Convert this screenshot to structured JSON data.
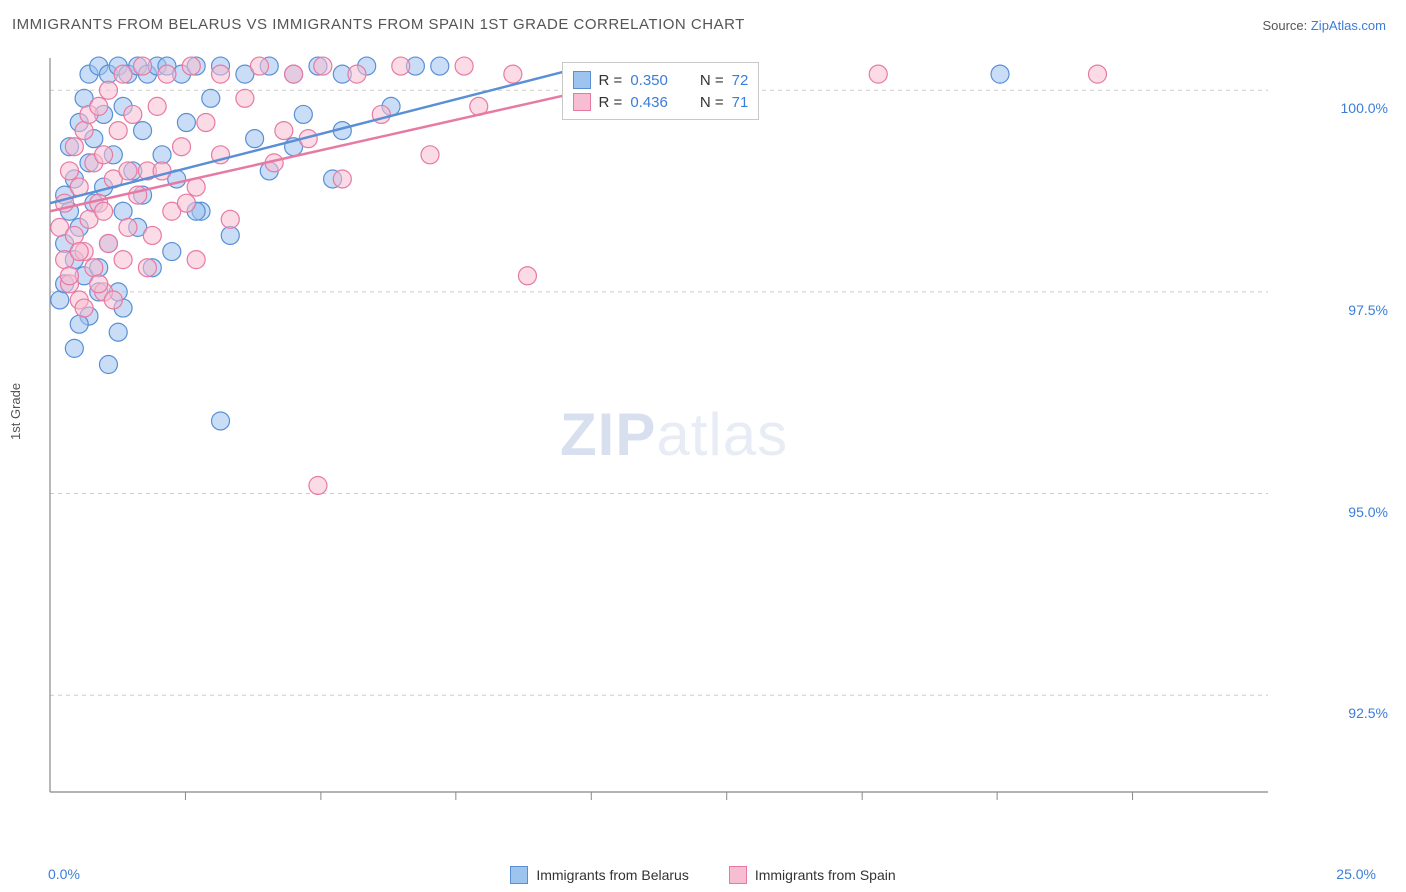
{
  "title": "IMMIGRANTS FROM BELARUS VS IMMIGRANTS FROM SPAIN 1ST GRADE CORRELATION CHART",
  "source_label": "Source: ",
  "source_name": "ZipAtlas.com",
  "ylabel": "1st Grade",
  "watermark_bold": "ZIP",
  "watermark_rest": "atlas",
  "chart": {
    "type": "scatter",
    "xlim": [
      0,
      25
    ],
    "ylim": [
      91.3,
      100.4
    ],
    "xtick_start_label": "0.0%",
    "xtick_end_label": "25.0%",
    "xtick_minor_positions": [
      2.78,
      5.56,
      8.33,
      11.11,
      13.89,
      16.67,
      19.44,
      22.22
    ],
    "ytick_labels": [
      "100.0%",
      "97.5%",
      "95.0%",
      "92.5%"
    ],
    "ytick_values": [
      100.0,
      97.5,
      95.0,
      92.5
    ],
    "grid_color": "#cccccc",
    "axis_color": "#888888",
    "background_color": "#ffffff",
    "marker_radius": 9,
    "marker_opacity": 0.55,
    "line_width": 2.5,
    "series": [
      {
        "name": "Immigrants from Belarus",
        "fill": "#9dc3ef",
        "stroke": "#5a8fd6",
        "r_label": "R = ",
        "r_value": "0.350",
        "n_label": "N = ",
        "n_value": "72",
        "regression": {
          "x1": 0.0,
          "y1": 98.6,
          "x2": 11.0,
          "y2": 100.3
        },
        "points": [
          [
            0.2,
            97.4
          ],
          [
            0.3,
            98.1
          ],
          [
            0.3,
            98.7
          ],
          [
            0.4,
            99.3
          ],
          [
            0.4,
            98.5
          ],
          [
            0.5,
            97.9
          ],
          [
            0.5,
            98.9
          ],
          [
            0.6,
            99.6
          ],
          [
            0.6,
            98.3
          ],
          [
            0.7,
            97.7
          ],
          [
            0.7,
            99.9
          ],
          [
            0.8,
            99.1
          ],
          [
            0.8,
            100.2
          ],
          [
            0.9,
            98.6
          ],
          [
            0.9,
            99.4
          ],
          [
            1.0,
            100.3
          ],
          [
            1.0,
            97.5
          ],
          [
            1.1,
            98.8
          ],
          [
            1.1,
            99.7
          ],
          [
            1.2,
            100.2
          ],
          [
            1.2,
            98.1
          ],
          [
            1.3,
            99.2
          ],
          [
            1.4,
            100.3
          ],
          [
            1.4,
            97.0
          ],
          [
            1.5,
            98.5
          ],
          [
            1.5,
            99.8
          ],
          [
            1.6,
            100.2
          ],
          [
            1.7,
            99.0
          ],
          [
            1.8,
            100.3
          ],
          [
            1.9,
            98.7
          ],
          [
            1.9,
            99.5
          ],
          [
            2.0,
            100.2
          ],
          [
            2.1,
            97.8
          ],
          [
            2.2,
            100.3
          ],
          [
            2.3,
            99.2
          ],
          [
            2.4,
            100.3
          ],
          [
            2.6,
            98.9
          ],
          [
            2.7,
            100.2
          ],
          [
            2.8,
            99.6
          ],
          [
            3.0,
            100.3
          ],
          [
            3.1,
            98.5
          ],
          [
            3.3,
            99.9
          ],
          [
            3.5,
            100.3
          ],
          [
            3.7,
            98.2
          ],
          [
            4.0,
            100.2
          ],
          [
            4.2,
            99.4
          ],
          [
            4.5,
            100.3
          ],
          [
            5.0,
            100.2
          ],
          [
            5.2,
            99.7
          ],
          [
            5.5,
            100.3
          ],
          [
            5.8,
            98.9
          ],
          [
            6.0,
            100.2
          ],
          [
            6.5,
            100.3
          ],
          [
            7.0,
            99.8
          ],
          [
            7.5,
            100.3
          ],
          [
            0.5,
            96.8
          ],
          [
            0.8,
            97.2
          ],
          [
            1.0,
            97.8
          ],
          [
            1.2,
            96.6
          ],
          [
            1.5,
            97.3
          ],
          [
            3.5,
            95.9
          ],
          [
            0.3,
            97.6
          ],
          [
            0.6,
            97.1
          ],
          [
            1.8,
            98.3
          ],
          [
            2.5,
            98.0
          ],
          [
            3.0,
            98.5
          ],
          [
            4.5,
            99.0
          ],
          [
            5.0,
            99.3
          ],
          [
            6.0,
            99.5
          ],
          [
            8.0,
            100.3
          ],
          [
            19.5,
            100.2
          ],
          [
            1.4,
            97.5
          ]
        ]
      },
      {
        "name": "Immigrants from Spain",
        "fill": "#f7bdd1",
        "stroke": "#e77aa3",
        "r_label": "R = ",
        "r_value": "0.436",
        "n_label": "N = ",
        "n_value": "71",
        "regression": {
          "x1": 0.0,
          "y1": 98.5,
          "x2": 12.5,
          "y2": 100.2
        },
        "points": [
          [
            0.2,
            98.3
          ],
          [
            0.3,
            97.9
          ],
          [
            0.3,
            98.6
          ],
          [
            0.4,
            99.0
          ],
          [
            0.4,
            97.6
          ],
          [
            0.5,
            98.2
          ],
          [
            0.5,
            99.3
          ],
          [
            0.6,
            98.8
          ],
          [
            0.6,
            97.4
          ],
          [
            0.7,
            99.5
          ],
          [
            0.7,
            98.0
          ],
          [
            0.8,
            99.7
          ],
          [
            0.8,
            98.4
          ],
          [
            0.9,
            99.1
          ],
          [
            0.9,
            97.8
          ],
          [
            1.0,
            98.6
          ],
          [
            1.0,
            99.8
          ],
          [
            1.1,
            97.5
          ],
          [
            1.1,
            99.2
          ],
          [
            1.2,
            98.1
          ],
          [
            1.2,
            100.0
          ],
          [
            1.3,
            98.9
          ],
          [
            1.4,
            99.5
          ],
          [
            1.5,
            97.9
          ],
          [
            1.5,
            100.2
          ],
          [
            1.6,
            98.3
          ],
          [
            1.7,
            99.7
          ],
          [
            1.8,
            98.7
          ],
          [
            1.9,
            100.3
          ],
          [
            2.0,
            99.0
          ],
          [
            2.1,
            98.2
          ],
          [
            2.2,
            99.8
          ],
          [
            2.4,
            100.2
          ],
          [
            2.5,
            98.5
          ],
          [
            2.7,
            99.3
          ],
          [
            2.9,
            100.3
          ],
          [
            3.0,
            98.8
          ],
          [
            3.2,
            99.6
          ],
          [
            3.5,
            100.2
          ],
          [
            3.7,
            98.4
          ],
          [
            4.0,
            99.9
          ],
          [
            4.3,
            100.3
          ],
          [
            4.6,
            99.1
          ],
          [
            5.0,
            100.2
          ],
          [
            5.3,
            99.4
          ],
          [
            5.6,
            100.3
          ],
          [
            6.0,
            98.9
          ],
          [
            6.3,
            100.2
          ],
          [
            6.8,
            99.7
          ],
          [
            7.2,
            100.3
          ],
          [
            7.8,
            99.2
          ],
          [
            8.5,
            100.3
          ],
          [
            8.8,
            99.8
          ],
          [
            9.5,
            100.2
          ],
          [
            0.4,
            97.7
          ],
          [
            0.7,
            97.3
          ],
          [
            1.0,
            97.6
          ],
          [
            1.3,
            97.4
          ],
          [
            2.0,
            97.8
          ],
          [
            3.0,
            97.9
          ],
          [
            9.8,
            97.7
          ],
          [
            5.5,
            95.1
          ],
          [
            0.6,
            98.0
          ],
          [
            1.1,
            98.5
          ],
          [
            2.3,
            99.0
          ],
          [
            3.5,
            99.2
          ],
          [
            4.8,
            99.5
          ],
          [
            17.0,
            100.2
          ],
          [
            21.5,
            100.2
          ],
          [
            1.6,
            99.0
          ],
          [
            2.8,
            98.6
          ]
        ]
      }
    ]
  },
  "bottom_legend": [
    {
      "label": "Immigrants from Belarus",
      "fill": "#9dc3ef",
      "stroke": "#5a8fd6"
    },
    {
      "label": "Immigrants from Spain",
      "fill": "#f7bdd1",
      "stroke": "#e77aa3"
    }
  ]
}
